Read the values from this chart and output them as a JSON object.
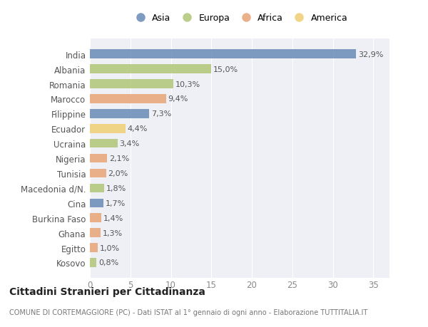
{
  "countries": [
    "India",
    "Albania",
    "Romania",
    "Marocco",
    "Filippine",
    "Ecuador",
    "Ucraina",
    "Nigeria",
    "Tunisia",
    "Macedonia d/N.",
    "Cina",
    "Burkina Faso",
    "Ghana",
    "Egitto",
    "Kosovo"
  ],
  "values": [
    32.9,
    15.0,
    10.3,
    9.4,
    7.3,
    4.4,
    3.4,
    2.1,
    2.0,
    1.8,
    1.7,
    1.4,
    1.3,
    1.0,
    0.8
  ],
  "labels": [
    "32,9%",
    "15,0%",
    "10,3%",
    "9,4%",
    "7,3%",
    "4,4%",
    "3,4%",
    "2,1%",
    "2,0%",
    "1,8%",
    "1,7%",
    "1,4%",
    "1,3%",
    "1,0%",
    "0,8%"
  ],
  "continents": [
    "Asia",
    "Europa",
    "Europa",
    "Africa",
    "Asia",
    "America",
    "Europa",
    "Africa",
    "Africa",
    "Europa",
    "Asia",
    "Africa",
    "Africa",
    "Africa",
    "Europa"
  ],
  "continent_colors": {
    "Asia": "#7090bb",
    "Europa": "#b5c97e",
    "Africa": "#e8a87c",
    "America": "#f0d07a"
  },
  "legend_order": [
    "Asia",
    "Europa",
    "Africa",
    "America"
  ],
  "title": "Cittadini Stranieri per Cittadinanza",
  "subtitle": "COMUNE DI CORTEMAGGIORE (PC) - Dati ISTAT al 1° gennaio di ogni anno - Elaborazione TUTTITALIA.IT",
  "xlim": [
    0,
    37
  ],
  "xticks": [
    0,
    5,
    10,
    15,
    20,
    25,
    30,
    35
  ],
  "background_color": "#ffffff",
  "plot_bg_color": "#eef0f5",
  "grid_color": "#ffffff",
  "bar_height": 0.6,
  "label_fontsize": 8,
  "tick_fontsize": 8.5,
  "ytick_fontsize": 8.5,
  "title_fontsize": 10,
  "subtitle_fontsize": 7,
  "legend_fontsize": 9
}
